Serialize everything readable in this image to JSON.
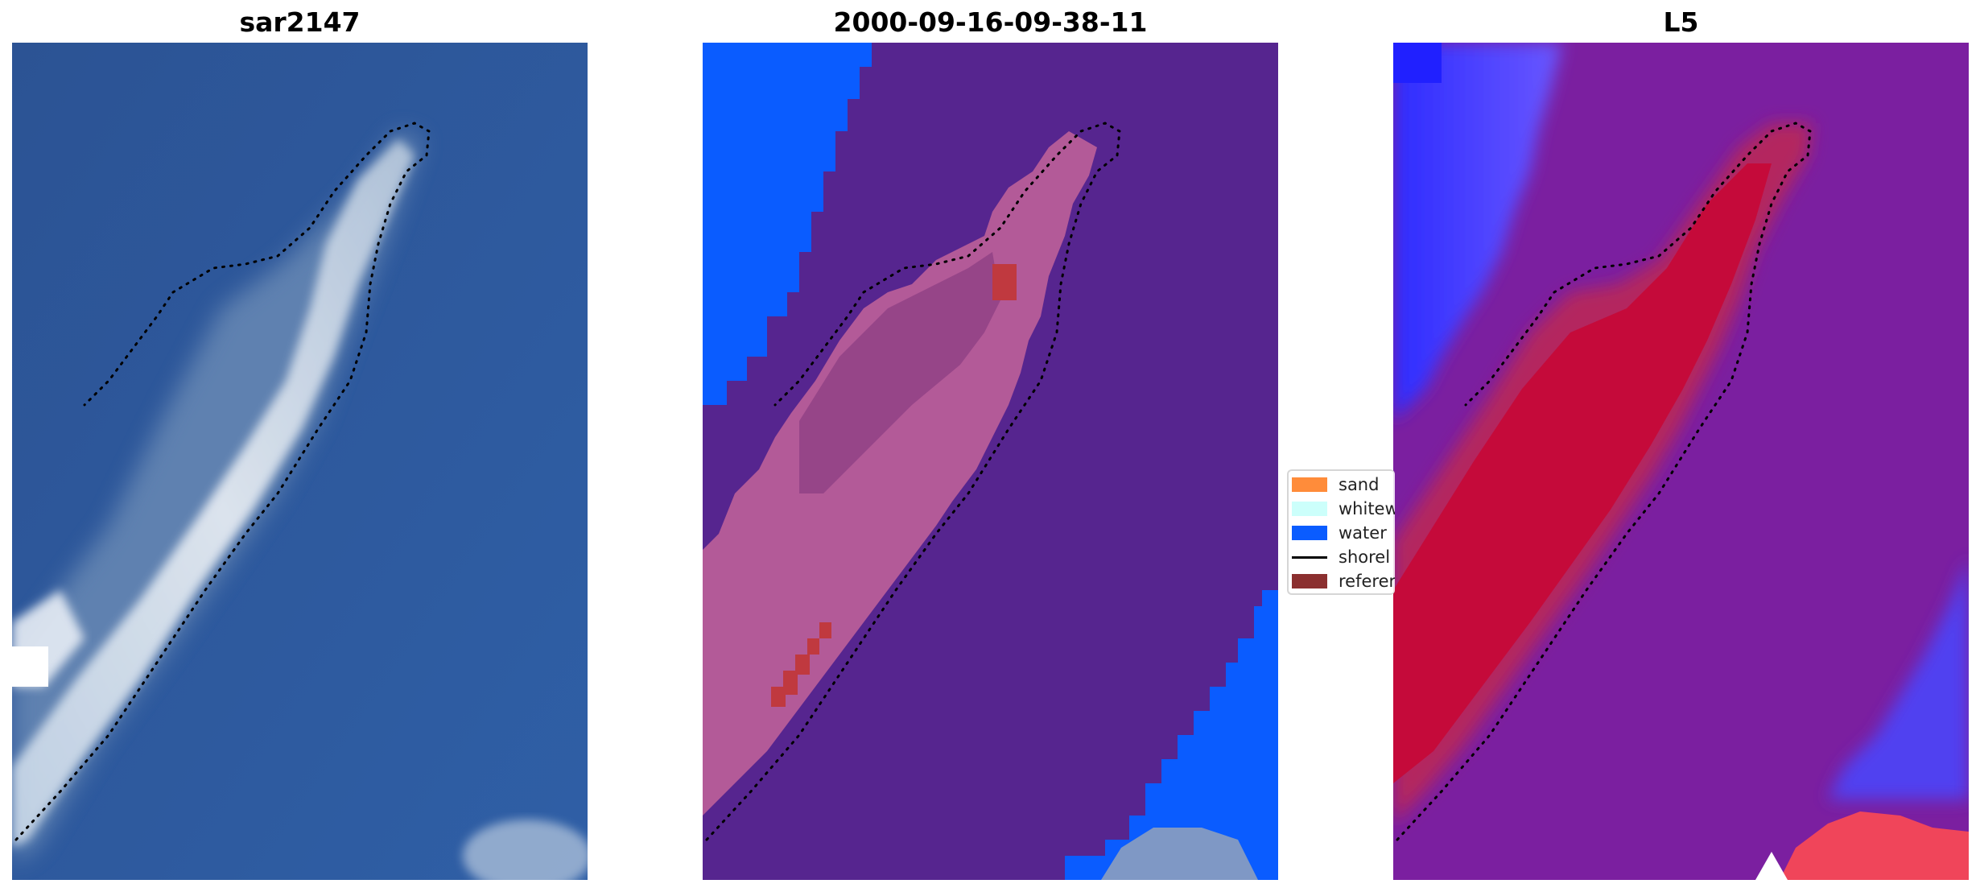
{
  "panels": [
    {
      "title": "sar2147"
    },
    {
      "title": "2000-09-16-09-38-11"
    },
    {
      "title": "L5"
    }
  ],
  "legend": {
    "items": [
      {
        "label": "sand",
        "color": "#ff8c3a"
      },
      {
        "label": "whitew",
        "color": "#ccfffb"
      },
      {
        "label": "water",
        "color": "#0a5cff"
      },
      {
        "label": "shorel",
        "color": "#000000"
      },
      {
        "label": "referer",
        "color": "#8b2f2f"
      }
    ]
  },
  "colors": {
    "satellite_water": "#2d5a9a",
    "classified_water": "#0a5cff",
    "classified_mask": "#56258f",
    "island_pink": "#b35a98",
    "reference_red": "#c0393f",
    "heatmap_red": "#c50a3a",
    "heatmap_purple": "#7b1fa0",
    "heatmap_blue": "#4a47ff"
  }
}
